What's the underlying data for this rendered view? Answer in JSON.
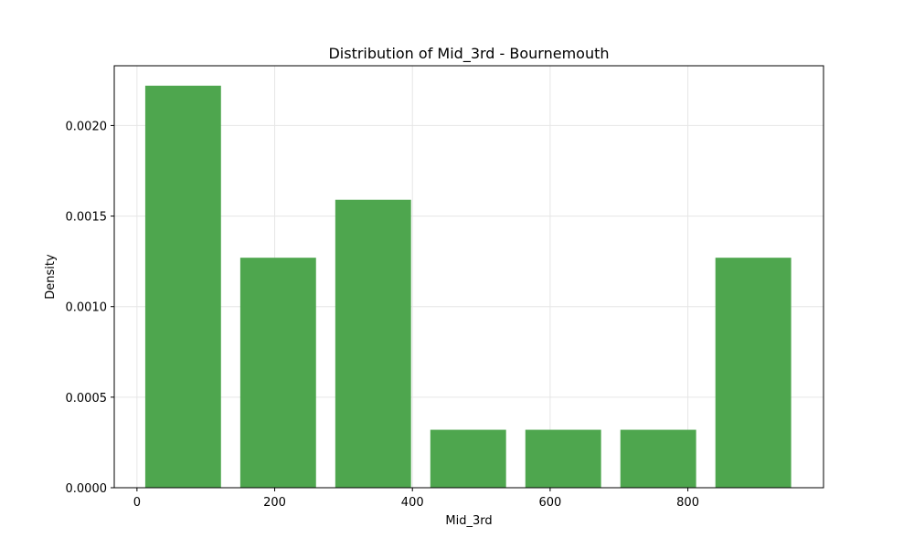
{
  "chart_data": {
    "type": "bar",
    "title": "Distribution of Mid_3rd - Bournemouth",
    "xlabel": "Mid_3rd",
    "ylabel": "Density",
    "bins": [
      {
        "x0": 12,
        "x1": 122,
        "density": 0.00222
      },
      {
        "x0": 150,
        "x1": 260,
        "density": 0.00127
      },
      {
        "x0": 288,
        "x1": 398,
        "density": 0.00159
      },
      {
        "x0": 426,
        "x1": 536,
        "density": 0.00032
      },
      {
        "x0": 564,
        "x1": 674,
        "density": 0.00032
      },
      {
        "x0": 702,
        "x1": 812,
        "density": 0.00032
      },
      {
        "x0": 840,
        "x1": 950,
        "density": 0.00127
      }
    ],
    "xlim": [
      -33,
      997
    ],
    "ylim": [
      0,
      0.00233
    ],
    "xticks": [
      0,
      200,
      400,
      600,
      800
    ],
    "xtick_labels": [
      "0",
      "200",
      "400",
      "600",
      "800"
    ],
    "yticks": [
      0,
      0.0005,
      0.001,
      0.0015,
      0.002
    ],
    "ytick_labels": [
      "0.0000",
      "0.0005",
      "0.0010",
      "0.0015",
      "0.0020"
    ],
    "grid": true,
    "colors": {
      "bar": "#4ea64e",
      "grid": "#e6e6e6",
      "axes": "#000000"
    }
  }
}
